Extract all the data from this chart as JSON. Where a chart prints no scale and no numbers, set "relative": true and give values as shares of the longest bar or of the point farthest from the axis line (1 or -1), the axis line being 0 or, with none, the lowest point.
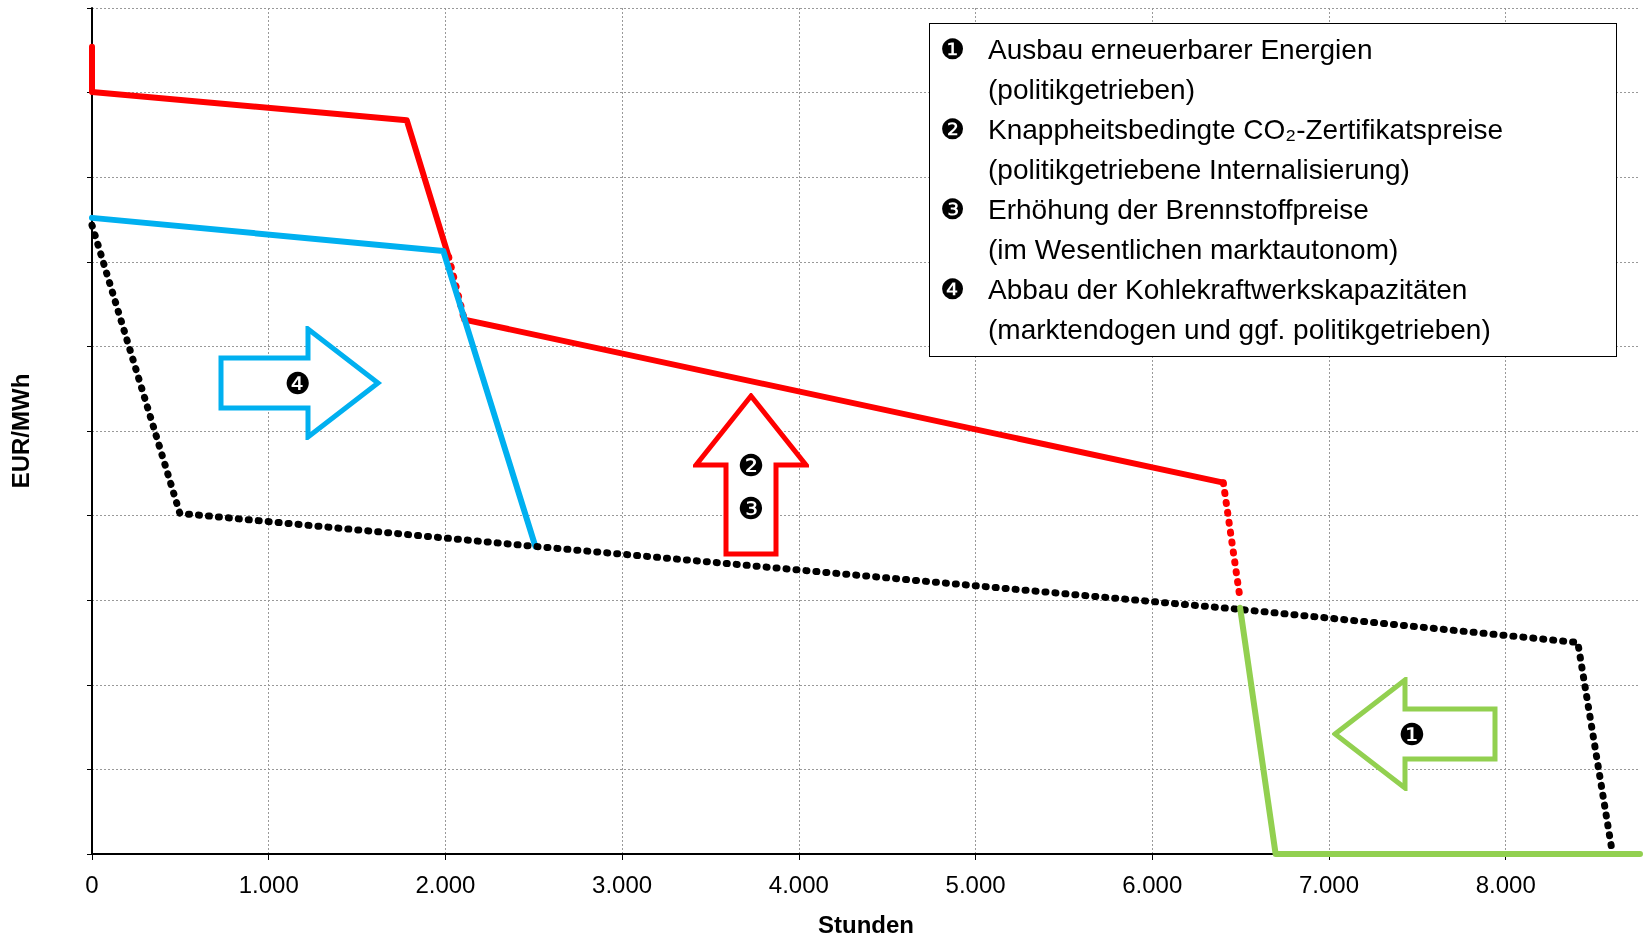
{
  "chart_data": {
    "type": "line",
    "relative": true,
    "xlabel": "Stunden",
    "ylabel": "EUR/MWh",
    "xlim": [
      0,
      8760
    ],
    "xticks": [
      0,
      {
        "value": 1000,
        "label": "1.000"
      },
      {
        "value": 2000,
        "label": "2.000"
      },
      {
        "value": 3000,
        "label": "3.000"
      },
      {
        "value": 4000,
        "label": "4.000"
      },
      {
        "value": 5000,
        "label": "5.000"
      },
      {
        "value": 6000,
        "label": "6.000"
      },
      {
        "value": 7000,
        "label": "7.000"
      },
      {
        "value": 8000,
        "label": "8.000"
      }
    ],
    "grid": true,
    "marker": "none",
    "series": [
      {
        "color": "#ff0000",
        "line_style": "solid",
        "x": [
          0,
          0,
          1781,
          2018
        ],
        "values": [
          1.0,
          0.944,
          0.909,
          0.74
        ]
      },
      {
        "color": "#ff0000",
        "line_style": "dotted",
        "x": [
          2018,
          2107
        ],
        "values": [
          0.74,
          0.662
        ]
      },
      {
        "color": "#ff0000",
        "line_style": "solid",
        "x": [
          2107,
          6402
        ],
        "values": [
          0.662,
          0.46
        ]
      },
      {
        "color": "#ff0000",
        "line_style": "dotted",
        "x": [
          6402,
          6497
        ],
        "values": [
          0.46,
          0.316
        ]
      },
      {
        "color": "#00b0f0",
        "line_style": "solid",
        "x": [
          0,
          1988,
          2509
        ],
        "values": [
          0.788,
          0.747,
          0.381
        ]
      },
      {
        "color": "#000000",
        "line_style": "dotted",
        "x": [
          0,
          497,
          2509,
          6497,
          8408,
          8598
        ],
        "values": [
          0.779,
          0.422,
          0.381,
          0.303,
          0.262,
          0.009
        ]
      },
      {
        "color": "#92d050",
        "line_style": "solid",
        "x": [
          6497,
          6698,
          8760
        ],
        "values": [
          0.305,
          0,
          0
        ]
      }
    ],
    "annotations": [
      "❶ Ausbau erneuerbarer Energien\n(politikgetrieben)",
      "❷ Knappheitsbedingte CO₂-Zertifikatspreise\n(politikgetriebene Internalisierung)",
      "❸ Erhöhung der Brennstoffpreise\n(im Wesentlichen marktautonom)",
      "❹ Abbau der Kohlekraftwerkskapazitäten\n(marktendogen und ggf. politikgetrieben)",
      "❹",
      "❷",
      "❸",
      "❶"
    ]
  }
}
